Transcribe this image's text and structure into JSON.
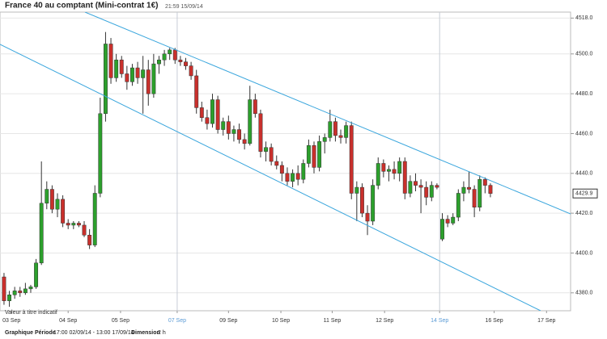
{
  "chart_data": {
    "type": "candlestick",
    "title": "France 40 au comptant (Mini-contrat 1€)",
    "subtitle": "21:59 15/09/14",
    "note": "Valeur à titre indicatif",
    "last_price": 4429.9,
    "footer": {
      "period_label": "Graphique Période",
      "period": "17:00 02/09/14 - 13:00 17/09/14",
      "size_label": "Dimension",
      "size": "2 h"
    },
    "up_color": "#2ca02c",
    "down_color": "#c9302c",
    "highlight_color": "#5b9bd5",
    "ylim": [
      4371,
      4521
    ],
    "yticks": [
      {
        "value": 4380,
        "label": "4380.0"
      },
      {
        "value": 4400,
        "label": "4400.0"
      },
      {
        "value": 4420,
        "label": "4420.0"
      },
      {
        "value": 4440,
        "label": "4440.0"
      },
      {
        "value": 4460,
        "label": "4460.0"
      },
      {
        "value": 4480,
        "label": "4480.0"
      },
      {
        "value": 4500,
        "label": "4500.0"
      },
      {
        "value": 4518,
        "label": "4518.0"
      }
    ],
    "xlim": [
      -0.75,
      106
    ],
    "xticks": [
      {
        "value": 1.4,
        "label": "03 Sep"
      },
      {
        "value": 12,
        "label": "04 Sep"
      },
      {
        "value": 21.8,
        "label": "05 Sep"
      },
      {
        "value": 32.4,
        "label": "07 Sep",
        "highlight": true
      },
      {
        "value": 42,
        "label": "09 Sep"
      },
      {
        "value": 51.8,
        "label": "10 Sep"
      },
      {
        "value": 61.4,
        "label": "11 Sep"
      },
      {
        "value": 71.2,
        "label": "12 Sep"
      },
      {
        "value": 81.5,
        "label": "14 Sep",
        "highlight": true
      },
      {
        "value": 91.7,
        "label": "16 Sep"
      },
      {
        "value": 101.5,
        "label": "17 Sep"
      }
    ],
    "candles": [
      [
        4388,
        4390,
        4374,
        4376
      ],
      [
        4376,
        4381,
        4373,
        4379
      ],
      [
        4379,
        4383,
        4377,
        4381
      ],
      [
        4381,
        4383,
        4378,
        4380
      ],
      [
        4380,
        4385,
        4379,
        4382
      ],
      [
        4382,
        4384,
        4380,
        4383
      ],
      [
        4383,
        4397,
        4382,
        4395
      ],
      [
        4395,
        4446,
        4394,
        4425
      ],
      [
        4425,
        4436,
        4422,
        4432
      ],
      [
        4432,
        4434,
        4420,
        4422
      ],
      [
        4422,
        4430,
        4418,
        4427
      ],
      [
        4427,
        4429,
        4413,
        4415
      ],
      [
        4415,
        4417,
        4412,
        4414
      ],
      [
        4414,
        4416,
        4412,
        4415
      ],
      [
        4415,
        4416,
        4413,
        4414
      ],
      [
        4414,
        4416,
        4408,
        4409
      ],
      [
        4409,
        4412,
        4402,
        4404
      ],
      [
        4404,
        4434,
        4403,
        4430
      ],
      [
        4430,
        4478,
        4428,
        4470
      ],
      [
        4470,
        4511,
        4466,
        4505
      ],
      [
        4505,
        4508,
        4485,
        4488
      ],
      [
        4488,
        4500,
        4486,
        4497
      ],
      [
        4497,
        4499,
        4488,
        4490
      ],
      [
        4490,
        4494,
        4482,
        4486
      ],
      [
        4486,
        4495,
        4484,
        4493
      ],
      [
        4493,
        4496,
        4485,
        4488
      ],
      [
        4488,
        4499,
        4470,
        4492
      ],
      [
        4492,
        4497,
        4474,
        4480
      ],
      [
        4480,
        4500,
        4478,
        4495
      ],
      [
        4495,
        4499,
        4490,
        4497
      ],
      [
        4497,
        4502,
        4494,
        4500
      ],
      [
        4500,
        4503,
        4497,
        4502
      ],
      [
        4502,
        4503,
        4495,
        4497
      ],
      [
        4497,
        4499,
        4494,
        4496
      ],
      [
        4496,
        4498,
        4492,
        4494
      ],
      [
        4494,
        4496,
        4487,
        4489
      ],
      [
        4489,
        4492,
        4470,
        4473
      ],
      [
        4473,
        4476,
        4466,
        4468
      ],
      [
        4468,
        4472,
        4462,
        4465
      ],
      [
        4465,
        4480,
        4463,
        4477
      ],
      [
        4477,
        4479,
        4460,
        4462
      ],
      [
        4462,
        4468,
        4459,
        4466
      ],
      [
        4466,
        4469,
        4457,
        4460
      ],
      [
        4460,
        4464,
        4456,
        4462
      ],
      [
        4462,
        4465,
        4455,
        4457
      ],
      [
        4457,
        4460,
        4452,
        4455
      ],
      [
        4455,
        4484,
        4454,
        4477
      ],
      [
        4477,
        4480,
        4468,
        4470
      ],
      [
        4470,
        4472,
        4448,
        4451
      ],
      [
        4451,
        4456,
        4446,
        4453
      ],
      [
        4453,
        4455,
        4444,
        4446
      ],
      [
        4446,
        4449,
        4442,
        4444
      ],
      [
        4444,
        4446,
        4436,
        4440
      ],
      [
        4440,
        4443,
        4434,
        4436
      ],
      [
        4436,
        4442,
        4433,
        4440
      ],
      [
        4440,
        4444,
        4434,
        4437
      ],
      [
        4437,
        4447,
        4435,
        4445
      ],
      [
        4445,
        4457,
        4443,
        4454
      ],
      [
        4454,
        4456,
        4440,
        4443
      ],
      [
        4443,
        4459,
        4441,
        4456
      ],
      [
        4456,
        4460,
        4450,
        4458
      ],
      [
        4458,
        4472,
        4456,
        4466
      ],
      [
        4466,
        4468,
        4456,
        4459
      ],
      [
        4459,
        4462,
        4455,
        4458
      ],
      [
        4458,
        4466,
        4455,
        4464
      ],
      [
        4464,
        4466,
        4427,
        4430
      ],
      [
        4430,
        4436,
        4416,
        4433
      ],
      [
        4433,
        4435,
        4418,
        4420
      ],
      [
        4420,
        4424,
        4409,
        4416
      ],
      [
        4416,
        4437,
        4414,
        4434
      ],
      [
        4434,
        4448,
        4432,
        4445
      ],
      [
        4445,
        4447,
        4438,
        4441
      ],
      [
        4441,
        4444,
        4436,
        4442
      ],
      [
        4442,
        4446,
        4437,
        4440
      ],
      [
        4440,
        4448,
        4436,
        4446
      ],
      [
        4446,
        4448,
        4427,
        4430
      ],
      [
        4430,
        4439,
        4428,
        4436
      ],
      [
        4436,
        4440,
        4431,
        4434
      ],
      [
        4434,
        4437,
        4420,
        4433
      ],
      [
        4433,
        4436,
        4424,
        4428
      ],
      [
        4428,
        4436,
        4426,
        4434
      ],
      [
        4434,
        4435,
        4432,
        4433
      ],
      [
        4407,
        4420,
        4406,
        4417
      ],
      [
        4417,
        4419,
        4413,
        4415
      ],
      [
        4415,
        4420,
        4414,
        4418
      ],
      [
        4418,
        4432,
        4416,
        4430
      ],
      [
        4430,
        4436,
        4426,
        4433
      ],
      [
        4433,
        4441,
        4430,
        4432
      ],
      [
        4432,
        4434,
        4418,
        4423
      ],
      [
        4423,
        4439,
        4421,
        4437
      ],
      [
        4437,
        4438,
        4430,
        4434
      ],
      [
        4434,
        4435,
        4428,
        4429.9
      ]
    ]
  }
}
